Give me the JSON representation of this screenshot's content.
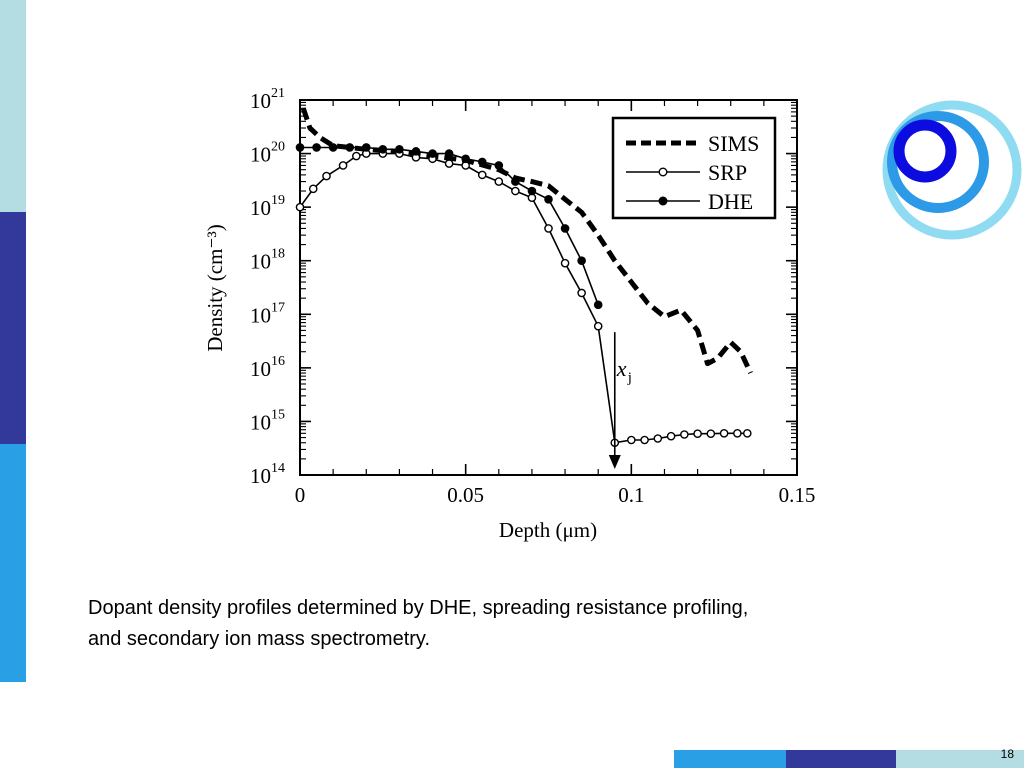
{
  "theme": {
    "bar_light": "#b3dce3",
    "bar_dark": "#33399a",
    "bar_blue": "#29a0e6",
    "logo_light": "#8fdcf2",
    "logo_mid": "#2c9ae6",
    "logo_dark": "#0c0ce0"
  },
  "caption": {
    "line1": "Dopant density profiles determined by DHE, spreading resistance profiling,",
    "line2": "and secondary ion mass spectrometry."
  },
  "slide_number": "18",
  "chart_data": {
    "type": "line",
    "xlabel": "Depth (μm)",
    "ylabel": "Density (cm⁻³)",
    "xlim": [
      0,
      0.15
    ],
    "ylim_exponent": [
      14,
      21
    ],
    "y_scale": "log",
    "x_ticks": [
      "0",
      "0.05",
      "0.1",
      "0.15"
    ],
    "y_tick_base": "10",
    "y_tick_exponents": [
      "14",
      "15",
      "16",
      "17",
      "18",
      "19",
      "20",
      "21"
    ],
    "legend_position": "top-right",
    "annotation": {
      "label": "x",
      "subscript": "j",
      "x": 0.095
    },
    "series": [
      {
        "name": "SIMS",
        "style": "dashed",
        "x": [
          0.001,
          0.003,
          0.006,
          0.01,
          0.02,
          0.03,
          0.04,
          0.05,
          0.06,
          0.065,
          0.07,
          0.075,
          0.08,
          0.085,
          0.09,
          0.095,
          0.1,
          0.105,
          0.11,
          0.115,
          0.12,
          0.123,
          0.126,
          0.13,
          0.133,
          0.136
        ],
        "y": [
          7e+20,
          3e+20,
          2e+20,
          1.4e+20,
          1.2e+20,
          1.1e+20,
          9e+19,
          7.5e+19,
          5e+19,
          3.5e+19,
          3e+19,
          2.5e+19,
          1.4e+19,
          8e+18,
          3e+18,
          1e+18,
          4e+17,
          1.6e+17,
          9e+16,
          1.2e+17,
          5e+16,
          1.2e+16,
          1.5e+16,
          3e+16,
          2e+16,
          8000000000000000.0
        ]
      },
      {
        "name": "SRP",
        "style": "open-circle",
        "x": [
          0,
          0.004,
          0.008,
          0.013,
          0.017,
          0.02,
          0.025,
          0.03,
          0.035,
          0.04,
          0.045,
          0.05,
          0.055,
          0.06,
          0.065,
          0.07,
          0.075,
          0.08,
          0.085,
          0.09,
          0.095,
          0.1,
          0.104,
          0.108,
          0.112,
          0.116,
          0.12,
          0.124,
          0.128,
          0.132,
          0.135
        ],
        "y": [
          1e+19,
          2.2e+19,
          3.8e+19,
          6e+19,
          9e+19,
          1e+20,
          1e+20,
          1e+20,
          8.5e+19,
          8e+19,
          6.5e+19,
          6e+19,
          4e+19,
          3e+19,
          2e+19,
          1.5e+19,
          4e+18,
          9e+17,
          2.5e+17,
          6e+16,
          400000000000000.0,
          450000000000000.0,
          450000000000000.0,
          480000000000000.0,
          530000000000000.0,
          570000000000000.0,
          590000000000000.0,
          590000000000000.0,
          600000000000000.0,
          600000000000000.0,
          600000000000000.0
        ]
      },
      {
        "name": "DHE",
        "style": "filled-circle",
        "x": [
          0,
          0.005,
          0.01,
          0.015,
          0.02,
          0.025,
          0.03,
          0.035,
          0.04,
          0.045,
          0.05,
          0.055,
          0.06,
          0.065,
          0.07,
          0.075,
          0.08,
          0.085,
          0.09
        ],
        "y": [
          1.3e+20,
          1.3e+20,
          1.3e+20,
          1.3e+20,
          1.3e+20,
          1.2e+20,
          1.2e+20,
          1.1e+20,
          1e+20,
          1e+20,
          8e+19,
          7e+19,
          6e+19,
          3e+19,
          2e+19,
          1.4e+19,
          4e+18,
          1e+18,
          1.5e+17
        ]
      }
    ]
  }
}
